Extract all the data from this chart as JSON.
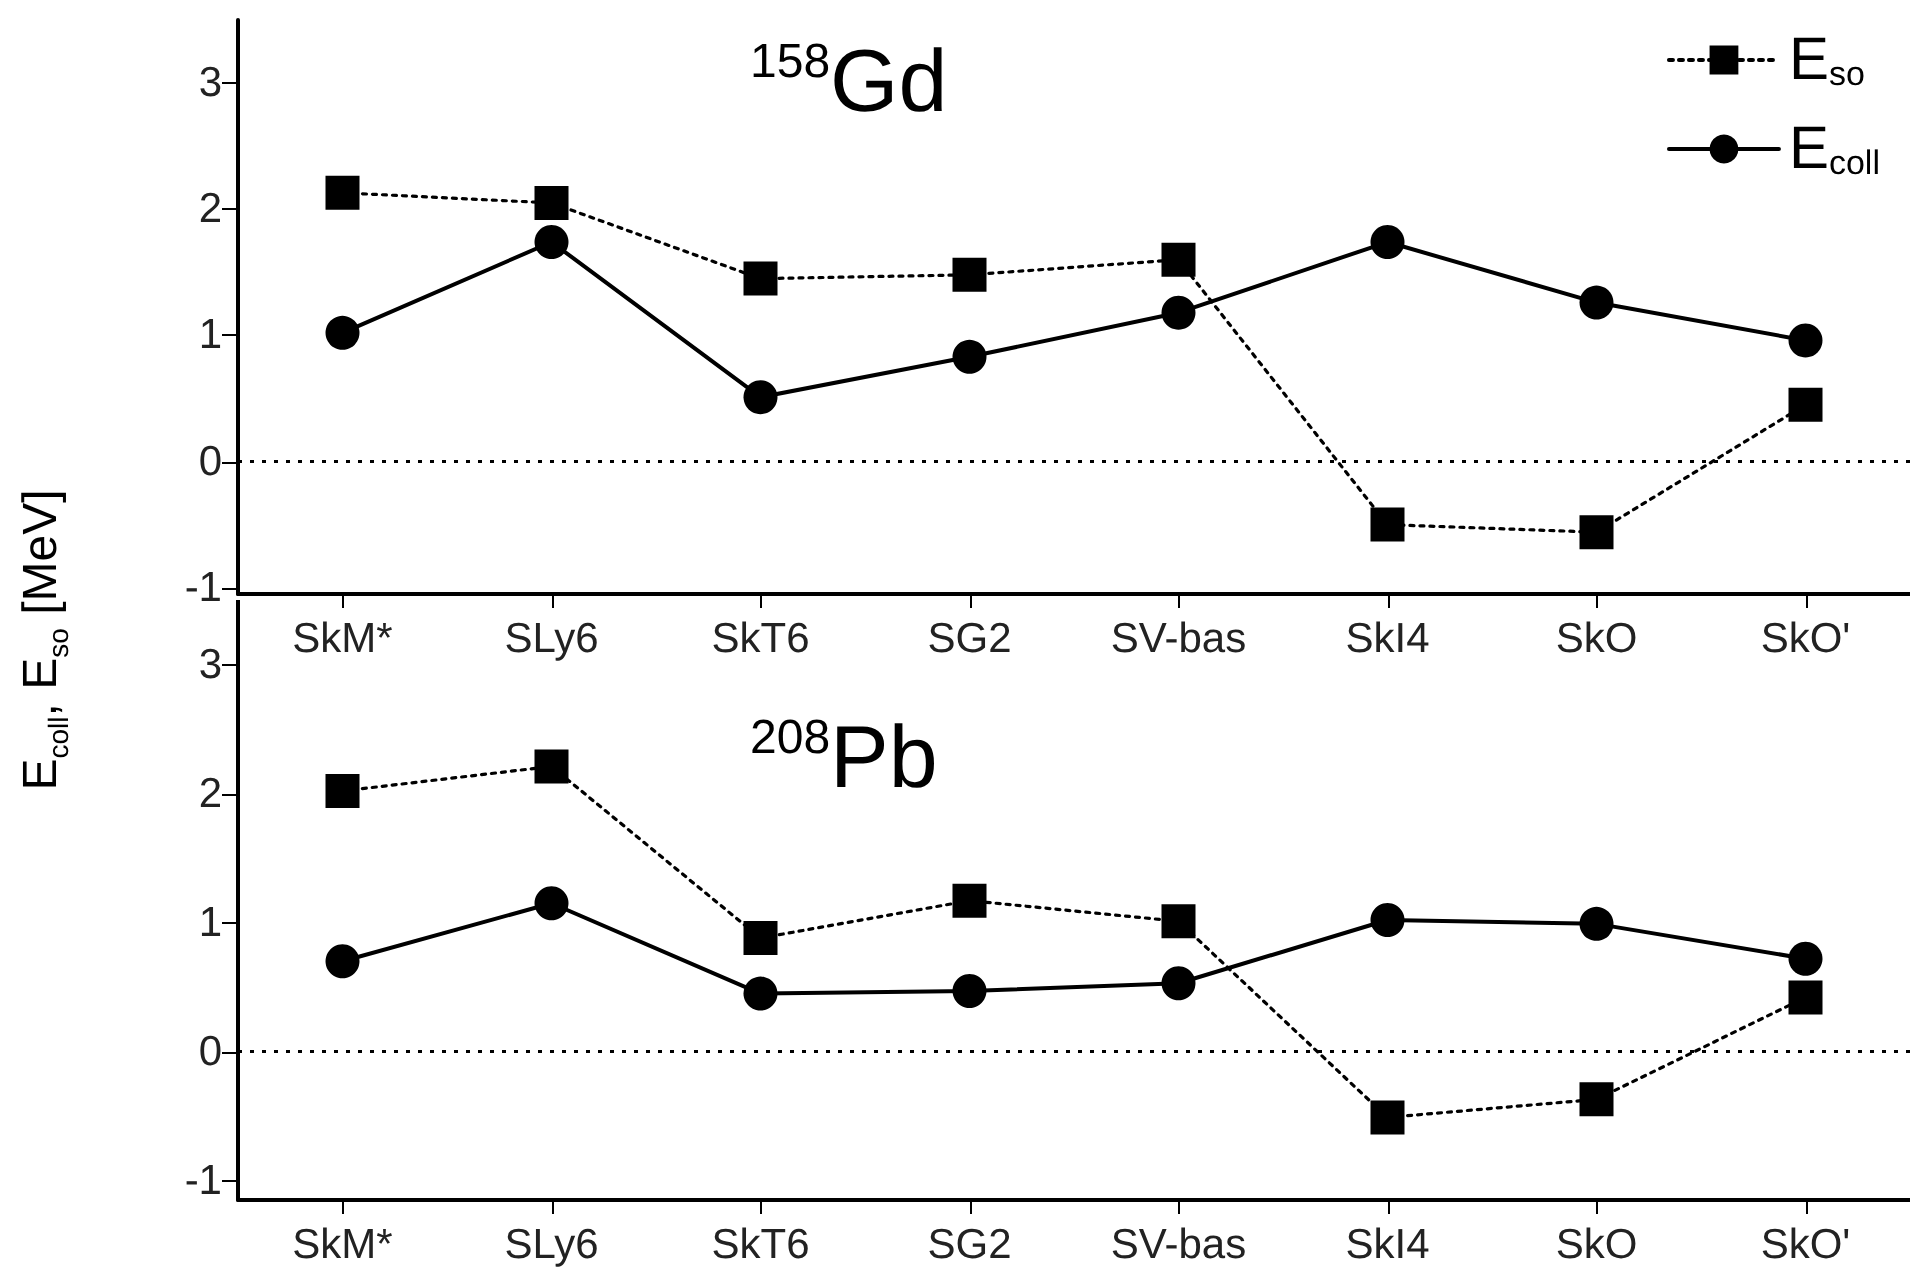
{
  "chart_data": [
    {
      "type": "line",
      "title": "$^{158}$Gd",
      "ylabel": "E$_{coll}$, E$_{so}$ [MeV]",
      "categories": [
        "SkM*",
        "SLy6",
        "SkT6",
        "SG2",
        "SV-bas",
        "SkI4",
        "SkO",
        "SkO'"
      ],
      "series": [
        {
          "name": "E$_{so}$",
          "color": "#000000",
          "marker": "square",
          "line_style": "dotted",
          "values": [
            2.13,
            2.05,
            1.45,
            1.48,
            1.6,
            -0.5,
            -0.56,
            0.45
          ]
        },
        {
          "name": "E$_{coll}$",
          "color": "#000000",
          "marker": "circle",
          "line_style": "solid",
          "values": [
            1.02,
            1.74,
            0.51,
            0.83,
            1.18,
            1.74,
            1.26,
            0.96
          ]
        }
      ],
      "ylim": [
        -1.05,
        3.5
      ],
      "yticks": [
        -1,
        0,
        1,
        2,
        3
      ],
      "grid": false,
      "legend": "top right",
      "ref_lines": [
        {
          "axis": "y",
          "value": 0,
          "line_style": "dotted",
          "color": "#000000"
        }
      ]
    },
    {
      "type": "line",
      "title": "$^{208}$Pb",
      "categories": [
        "SkM*",
        "SLy6",
        "SkT6",
        "SG2",
        "SV-bas",
        "SkI4",
        "SkO",
        "SkO'"
      ],
      "series": [
        {
          "color": "#000000",
          "marker": "square",
          "line_style": "dotted",
          "values": [
            2.02,
            2.21,
            0.88,
            1.17,
            1.01,
            -0.51,
            -0.37,
            0.42
          ]
        },
        {
          "color": "#000000",
          "marker": "circle",
          "line_style": "solid",
          "values": [
            0.7,
            1.15,
            0.45,
            0.47,
            0.53,
            1.02,
            0.99,
            0.72
          ]
        }
      ],
      "ylim": [
        -1.15,
        3.5
      ],
      "yticks": [
        -1,
        0,
        1,
        2,
        3
      ],
      "grid": false,
      "legend": false,
      "ref_lines": [
        {
          "axis": "y",
          "value": 0,
          "line_style": "dotted",
          "color": "#000000"
        }
      ]
    }
  ]
}
